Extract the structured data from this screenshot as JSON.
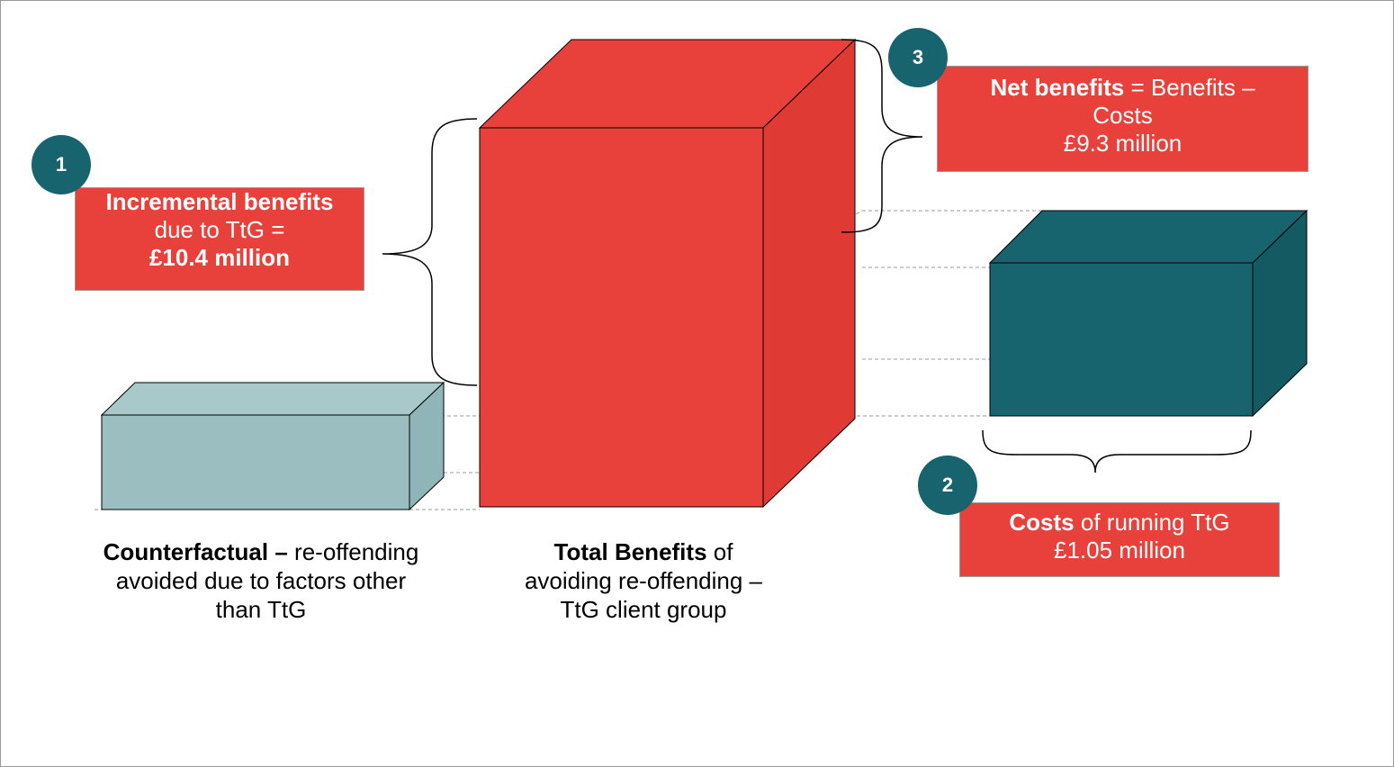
{
  "callouts": [
    {
      "number": "1",
      "title": "Incremental benefits",
      "text": "due to TtG =",
      "amount": "£10.4 million"
    },
    {
      "number": "3",
      "title": "Net benefits",
      "text": "=  Benefits – Costs",
      "amount": "£9.3 million"
    },
    {
      "number": "2",
      "title": "Costs",
      "text": "of running TtG",
      "amount": "£1.05 million"
    }
  ],
  "labels": [
    {
      "title": "Counterfactual –",
      "text": "re-offending avoided due to factors other than TtG"
    },
    {
      "title": "Total Benefits",
      "text": "of avoiding re-offending – TtG client group"
    }
  ]
}
